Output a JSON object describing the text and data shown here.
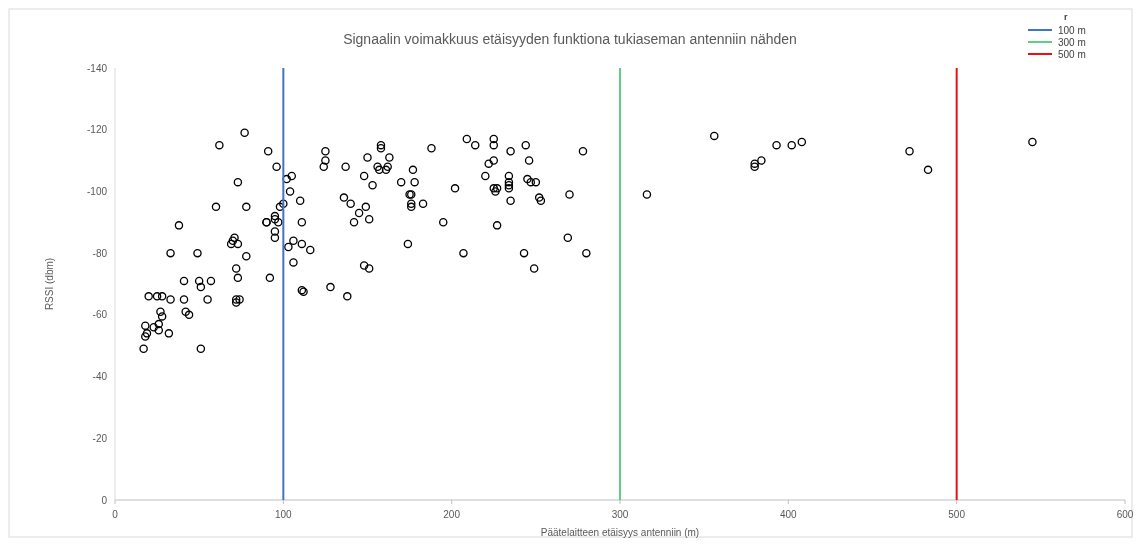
{
  "chart_data": {
    "type": "scatter",
    "title": "Signaalin voimakkuus etäisyyden funktiona tukiaseman antenniin nähden",
    "xlabel": "Päätelaitteen etäisyys antenniin (m)",
    "ylabel": "RSSI (dbm)",
    "legend_title": "r",
    "legend": "top right",
    "marker": "circle",
    "grid": false,
    "xlim": [
      0,
      600
    ],
    "xticks": [
      0,
      100,
      200,
      300,
      400,
      500,
      600
    ],
    "ylim": [
      0,
      -140
    ],
    "yticks": [
      0,
      -20,
      -40,
      -60,
      -80,
      -100,
      -120,
      -140
    ],
    "series": [
      {
        "color": "#000000",
        "x": [
          17,
          18,
          19,
          18,
          20,
          23,
          25,
          26,
          26,
          27,
          28,
          28,
          32,
          33,
          33,
          38,
          41,
          41,
          42,
          44,
          49,
          50,
          51,
          51,
          55,
          57,
          60,
          62,
          69,
          70,
          71,
          72,
          72,
          72,
          73,
          73,
          73,
          74,
          77,
          78,
          78,
          90,
          90,
          91,
          92,
          95,
          95,
          95,
          95,
          96,
          97,
          98,
          100,
          102,
          103,
          104,
          105,
          106,
          106,
          110,
          111,
          111,
          111,
          112,
          116,
          124,
          125,
          125,
          128,
          136,
          137,
          138,
          140,
          142,
          145,
          148,
          148,
          149,
          150,
          151,
          151,
          153,
          156,
          157,
          158,
          158,
          161,
          162,
          163,
          170,
          174,
          175,
          176,
          176,
          176,
          177,
          178,
          183,
          188,
          195,
          202,
          207,
          209,
          214,
          220,
          222,
          225,
          225,
          225,
          225,
          226,
          227,
          227,
          234,
          234,
          234,
          234,
          235,
          235,
          243,
          244,
          245,
          246,
          247,
          249,
          250,
          252,
          253,
          269,
          270,
          278,
          280,
          316,
          356,
          380,
          380,
          384,
          393,
          402,
          408,
          472,
          483,
          545
        ],
        "values": [
          -49,
          -53,
          -54,
          -56.5,
          -66,
          -56,
          -66,
          -55,
          -57,
          -61,
          -66,
          -59.5,
          -54,
          -65,
          -80,
          -89,
          -65,
          -71,
          -61,
          -60,
          -80,
          -71,
          -69,
          -49,
          -65,
          -71,
          -95,
          -115,
          -83,
          -84,
          -85,
          -75,
          -65,
          -64,
          -103,
          -72,
          -83,
          -65,
          -119,
          -95,
          -79,
          -90,
          -90,
          -113,
          -72,
          -92,
          -91,
          -87,
          -85,
          -108,
          -90,
          -95,
          -96,
          -104,
          -82,
          -100,
          -105,
          -84,
          -77,
          -97,
          -90,
          -83,
          -68,
          -67.5,
          -81,
          -108,
          -113,
          -110,
          -69,
          -98,
          -108,
          -66,
          -96,
          -90,
          -93,
          -105,
          -76,
          -95,
          -111,
          -75,
          -91,
          -102,
          -108,
          -107,
          -115,
          -114,
          -107,
          -108,
          -111,
          -103,
          -83,
          -99,
          -99,
          -96,
          -95,
          -107,
          -103,
          -96,
          -114,
          -90,
          -101,
          -80,
          -117,
          -115,
          -105,
          -109,
          -115,
          -117,
          -101,
          -110,
          -100,
          -89,
          -101,
          -105,
          -103,
          -102,
          -101,
          -97,
          -113,
          -80,
          -115,
          -104,
          -110,
          -103,
          -75,
          -103,
          -98,
          -97,
          -85,
          -99,
          -113,
          -80,
          -99,
          -118,
          -109,
          -108,
          -110,
          -115,
          -115,
          -116,
          -113,
          -107,
          -116
        ]
      }
    ],
    "ref_lines": [
      {
        "axis": "x",
        "value": 100,
        "label": "100 m",
        "color": "#4472c4"
      },
      {
        "axis": "x",
        "value": 300,
        "label": "300 m",
        "color": "#5fcf86"
      },
      {
        "axis": "x",
        "value": 500,
        "label": "500 m",
        "color": "#e81010"
      }
    ]
  }
}
